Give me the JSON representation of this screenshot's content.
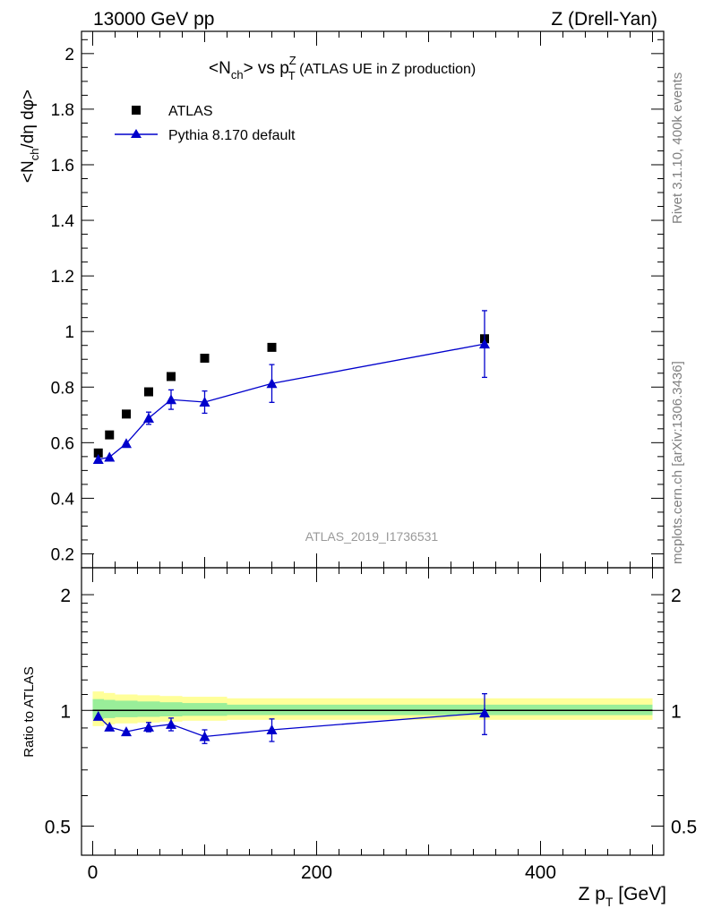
{
  "header": {
    "left": "13000 GeV pp",
    "right": "Z (Drell-Yan)"
  },
  "side": {
    "rivet": "Rivet 3.1.10,  400k events",
    "mcplots": "mcplots.cern.ch [arXiv:1306.3436]"
  },
  "watermark": "ATLAS_2019_I1736531",
  "chart_data": [
    {
      "type": "scatter",
      "title": "<N_ch> vs p_T^Z (ATLAS UE in Z production)",
      "title_parts": {
        "a": "<N",
        "a_sub": "ch",
        "b": "> vs p",
        "b_sup": "Z",
        "b_sub": "T",
        "c": " (ATLAS UE in Z production)"
      },
      "ylabel": "<N_ch/dη dφ>",
      "ylabel_parts": {
        "a": "<N",
        "a_sub": "ch",
        "b": "/dη dφ>"
      },
      "xlim": [
        -10,
        510
      ],
      "ylim": [
        0.15,
        2.08
      ],
      "y_ticks": [
        0.2,
        0.4,
        0.6,
        0.8,
        1,
        1.2,
        1.4,
        1.6,
        1.8,
        2
      ],
      "y_tick_labels": [
        "0.2",
        "0.4",
        "0.6",
        "0.8",
        "1",
        "1.2",
        "1.4",
        "1.6",
        "1.8",
        "2"
      ],
      "legend_position": "top-left",
      "series": [
        {
          "name": "ATLAS",
          "marker": "square",
          "color": "#000000",
          "x": [
            5,
            15,
            30,
            50,
            70,
            100,
            160,
            350
          ],
          "y": [
            0.563,
            0.628,
            0.703,
            0.783,
            0.838,
            0.904,
            0.943,
            0.974
          ]
        },
        {
          "name": "Pythia 8.170 default",
          "marker": "triangle",
          "color": "#0000cc",
          "x": [
            5,
            15,
            30,
            50,
            70,
            100,
            160,
            350
          ],
          "y": [
            0.54,
            0.548,
            0.597,
            0.688,
            0.755,
            0.746,
            0.813,
            0.955
          ],
          "yerr": [
            0.01,
            0.01,
            0.012,
            0.022,
            0.035,
            0.04,
            0.068,
            0.12
          ]
        }
      ]
    },
    {
      "type": "line",
      "ylabel": "Ratio to ATLAS",
      "xlabel": "Z p_T [GeV]",
      "xlabel_parts": {
        "a": "Z p",
        "a_sub": "T",
        "b": " [GeV]"
      },
      "xlim": [
        -10,
        510
      ],
      "ylim": [
        0.42,
        2.35
      ],
      "y_scale": "log",
      "y_ticks": [
        0.5,
        1,
        2
      ],
      "y_tick_labels": [
        "0.5",
        "1",
        "2"
      ],
      "x_ticks": [
        0,
        200,
        400
      ],
      "x_tick_labels": [
        "0",
        "200",
        "400"
      ],
      "reference": 1,
      "bands": [
        {
          "x0": 0,
          "x1": 10,
          "yellow": [
            0.91,
            1.12
          ],
          "green": [
            0.95,
            1.07
          ]
        },
        {
          "x0": 10,
          "x1": 20,
          "yellow": [
            0.92,
            1.11
          ],
          "green": [
            0.955,
            1.065
          ]
        },
        {
          "x0": 20,
          "x1": 40,
          "yellow": [
            0.925,
            1.1
          ],
          "green": [
            0.96,
            1.06
          ]
        },
        {
          "x0": 40,
          "x1": 60,
          "yellow": [
            0.93,
            1.095
          ],
          "green": [
            0.962,
            1.055
          ]
        },
        {
          "x0": 60,
          "x1": 80,
          "yellow": [
            0.935,
            1.09
          ],
          "green": [
            0.965,
            1.05
          ]
        },
        {
          "x0": 80,
          "x1": 120,
          "yellow": [
            0.94,
            1.085
          ],
          "green": [
            0.968,
            1.045
          ]
        },
        {
          "x0": 120,
          "x1": 200,
          "yellow": [
            0.945,
            1.075
          ],
          "green": [
            0.972,
            1.035
          ]
        },
        {
          "x0": 200,
          "x1": 500,
          "yellow": [
            0.945,
            1.075
          ],
          "green": [
            0.972,
            1.035
          ]
        }
      ],
      "series": [
        {
          "name": "Pythia 8.170 default",
          "color": "#0000cc",
          "x": [
            5,
            15,
            30,
            50,
            70,
            100,
            160,
            350
          ],
          "y": [
            0.965,
            0.905,
            0.88,
            0.905,
            0.92,
            0.855,
            0.89,
            0.985
          ],
          "yerr": [
            0.015,
            0.015,
            0.015,
            0.025,
            0.035,
            0.035,
            0.06,
            0.12
          ]
        }
      ]
    }
  ]
}
